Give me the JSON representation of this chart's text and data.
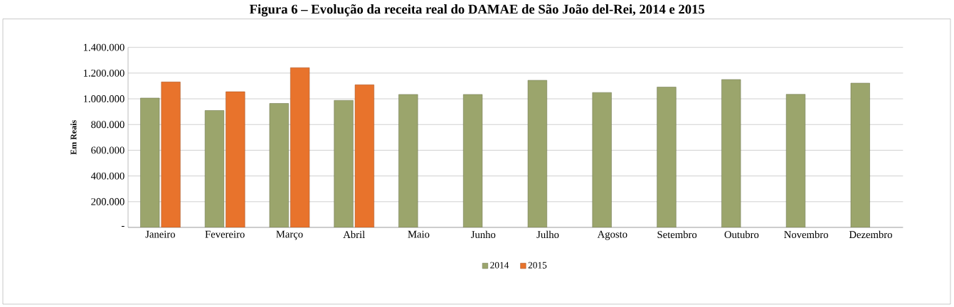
{
  "chart_data": {
    "type": "bar",
    "title": "Figura 6 – Evolução da receita real do DAMAE de São João del-Rei, 2014 e 2015",
    "ylabel": "Em Reais",
    "categories": [
      "Janeiro",
      "Fevereiro",
      "Março",
      "Abril",
      "Maio",
      "Junho",
      "Julho",
      "Agosto",
      "Setembro",
      "Outubro",
      "Novembro",
      "Dezembro"
    ],
    "series": [
      {
        "name": "2014",
        "color": "#9ba56c",
        "values": [
          1006000,
          909000,
          964000,
          988000,
          1034000,
          1034000,
          1144000,
          1049000,
          1091000,
          1150000,
          1035000,
          1122000
        ]
      },
      {
        "name": "2015",
        "color": "#e8732c",
        "values": [
          1131000,
          1055000,
          1242000,
          1109000,
          null,
          null,
          null,
          null,
          null,
          null,
          null,
          null
        ]
      }
    ],
    "ylim": [
      0,
      1400000
    ],
    "yticks": [
      {
        "value": 0,
        "label": "-"
      },
      {
        "value": 200000,
        "label": "200.000"
      },
      {
        "value": 400000,
        "label": "400.000"
      },
      {
        "value": 600000,
        "label": "600.000"
      },
      {
        "value": 800000,
        "label": "800.000"
      },
      {
        "value": 1000000,
        "label": "1.000.000"
      },
      {
        "value": 1200000,
        "label": "1.200.000"
      },
      {
        "value": 1400000,
        "label": "1.400.000"
      }
    ],
    "grid": "y",
    "legend": "bottom"
  }
}
